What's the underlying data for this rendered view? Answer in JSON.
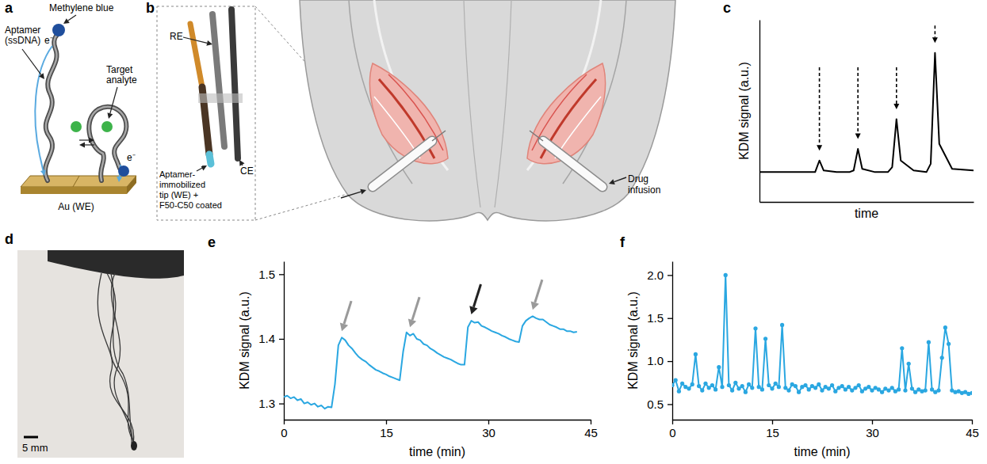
{
  "panel_letters": [
    "a",
    "b",
    "c",
    "d",
    "e",
    "f"
  ],
  "diagrams": {
    "a": {
      "methylene_blue": "Methylene blue",
      "aptamer": [
        "Aptamer",
        "(ssDNA)"
      ],
      "target_analyte": [
        "Target",
        "analyte"
      ],
      "electrode": "Au (WE)",
      "electron": "e⁻"
    },
    "b": {
      "reference_electrode": "RE",
      "counter_electrode": "CE",
      "working_electrode": [
        "Aptamer-",
        "immobilized",
        "tip (WE) +",
        "F50-C50 coated"
      ],
      "drug_infusion": [
        "Drug",
        "infusion"
      ]
    },
    "d": {
      "scale_bar": "5 mm"
    }
  },
  "chart_data": [
    {
      "type": "line",
      "x_label": "time",
      "y_label": "KDM signal (a.u.)",
      "tick_labels": false,
      "xlim": [
        0,
        10
      ],
      "ylim": [
        0,
        11
      ],
      "x": [
        0,
        1,
        2,
        2.6,
        2.8,
        3.0,
        3.6,
        4.2,
        4.4,
        4.6,
        4.8,
        5.4,
        6.0,
        6.2,
        6.4,
        6.6,
        7.2,
        7.8,
        8.0,
        8.2,
        8.4,
        9.0,
        10
      ],
      "series": [
        {
          "color": "#000000",
          "values": [
            1.8,
            1.8,
            1.8,
            1.8,
            2.5,
            1.9,
            1.8,
            1.8,
            1.9,
            3.2,
            2.0,
            1.8,
            1.8,
            2.1,
            5.0,
            2.5,
            1.9,
            1.8,
            2.3,
            9.0,
            3.5,
            2.0,
            1.9
          ]
        }
      ],
      "arrows": [
        {
          "x": 2.8,
          "y": 3.1,
          "line_style": "dashed"
        },
        {
          "x": 4.6,
          "y": 3.8,
          "line_style": "dashed"
        },
        {
          "x": 6.4,
          "y": 5.6,
          "line_style": "dashed"
        },
        {
          "x": 8.2,
          "y": 9.6,
          "line_style": "dashed"
        }
      ]
    },
    {
      "type": "line",
      "x_label": "time (min)",
      "y_label": "KDM signal (a.u.)",
      "xlim": [
        0,
        45
      ],
      "ylim": [
        1.275,
        1.52
      ],
      "xticks": [
        0,
        15,
        30,
        45
      ],
      "yticks": [
        1.3,
        1.4,
        1.5
      ],
      "x": [
        0,
        0.5,
        1,
        1.5,
        2,
        2.5,
        3,
        3.5,
        4,
        4.5,
        5,
        5.5,
        6,
        6.5,
        7,
        7.5,
        8,
        8.5,
        9,
        9.5,
        10,
        10.5,
        11,
        11.5,
        12,
        12.5,
        13,
        13.5,
        14,
        14.5,
        15,
        15.5,
        16,
        16.5,
        17,
        17.5,
        18,
        18.5,
        19,
        19.5,
        20,
        20.5,
        21,
        21.5,
        22,
        22.5,
        23,
        23.5,
        24,
        24.5,
        25,
        25.5,
        26,
        26.5,
        27,
        27.5,
        28,
        28.5,
        29,
        29.5,
        30,
        30.5,
        31,
        31.5,
        32,
        32.5,
        33,
        33.5,
        34,
        34.5,
        35,
        35.5,
        36,
        36.5,
        37,
        37.5,
        38,
        38.5,
        39,
        39.5,
        40,
        40.5,
        41,
        41.5,
        42,
        42.5,
        43
      ],
      "series": [
        {
          "color": "#2aa7e1",
          "values": [
            1.31,
            1.312,
            1.308,
            1.31,
            1.305,
            1.307,
            1.3,
            1.302,
            1.298,
            1.3,
            1.295,
            1.297,
            1.292,
            1.295,
            1.294,
            1.33,
            1.39,
            1.402,
            1.398,
            1.39,
            1.385,
            1.378,
            1.372,
            1.368,
            1.365,
            1.36,
            1.356,
            1.352,
            1.35,
            1.347,
            1.345,
            1.342,
            1.34,
            1.338,
            1.336,
            1.38,
            1.41,
            1.405,
            1.408,
            1.4,
            1.398,
            1.392,
            1.39,
            1.385,
            1.382,
            1.378,
            1.375,
            1.372,
            1.37,
            1.368,
            1.365,
            1.362,
            1.36,
            1.36,
            1.418,
            1.428,
            1.425,
            1.426,
            1.42,
            1.418,
            1.415,
            1.412,
            1.41,
            1.408,
            1.405,
            1.403,
            1.4,
            1.398,
            1.396,
            1.395,
            1.42,
            1.428,
            1.432,
            1.435,
            1.432,
            1.43,
            1.43,
            1.426,
            1.422,
            1.42,
            1.418,
            1.415,
            1.415,
            1.412,
            1.412,
            1.41,
            1.411
          ]
        }
      ],
      "arrows": [
        {
          "x": 8.5,
          "y": 1.412,
          "color": "#9a9a9a"
        },
        {
          "x": 18.5,
          "y": 1.418,
          "color": "#9a9a9a"
        },
        {
          "x": 27.5,
          "y": 1.438,
          "color": "#222222"
        },
        {
          "x": 36.5,
          "y": 1.445,
          "color": "#9a9a9a"
        }
      ]
    },
    {
      "type": "line",
      "x_label": "time (min)",
      "y_label": "KDM signal (a.u.)",
      "xlim": [
        0,
        45
      ],
      "ylim": [
        0.32,
        2.16
      ],
      "xticks": [
        0,
        15,
        30,
        45
      ],
      "yticks": [
        0.5,
        {
          "value": 1,
          "label": "1.0"
        },
        1.5,
        {
          "value": 2,
          "label": "2.0"
        }
      ],
      "x": [
        0,
        0.5,
        1,
        1.5,
        2,
        2.5,
        3,
        3.5,
        4,
        4.5,
        5,
        5.5,
        6,
        6.5,
        7,
        7.5,
        8,
        8.5,
        9,
        9.5,
        10,
        10.5,
        11,
        11.5,
        12,
        12.5,
        13,
        13.5,
        14,
        14.5,
        15,
        15.5,
        16,
        16.5,
        17,
        17.5,
        18,
        18.5,
        19,
        19.5,
        20,
        20.5,
        21,
        21.5,
        22,
        22.5,
        23,
        23.5,
        24,
        24.5,
        25,
        25.5,
        26,
        26.5,
        27,
        27.5,
        28,
        28.5,
        29,
        29.5,
        30,
        30.5,
        31,
        31.5,
        32,
        32.5,
        33,
        33.5,
        34,
        34.5,
        35,
        35.5,
        36,
        36.5,
        37,
        37.5,
        38,
        38.5,
        39,
        39.5,
        40,
        40.5,
        41,
        41.5,
        42,
        42.5,
        43,
        43.5,
        44,
        44.5,
        45
      ],
      "series": [
        {
          "color": "#2aa7e1",
          "marker": "circle",
          "values": [
            0.72,
            0.78,
            0.65,
            0.74,
            0.7,
            0.68,
            0.73,
            1.08,
            0.71,
            0.66,
            0.74,
            0.69,
            0.72,
            0.67,
            0.93,
            0.7,
            2.0,
            0.72,
            0.66,
            0.75,
            0.68,
            0.71,
            0.64,
            0.73,
            0.69,
            1.38,
            0.7,
            0.67,
            1.26,
            0.72,
            0.68,
            0.74,
            0.7,
            1.42,
            0.69,
            0.66,
            0.73,
            0.71,
            0.64,
            0.7,
            0.72,
            0.67,
            0.71,
            0.69,
            0.73,
            0.66,
            0.7,
            0.68,
            0.72,
            0.65,
            0.69,
            0.71,
            0.67,
            0.7,
            0.66,
            0.69,
            0.72,
            0.65,
            0.68,
            0.7,
            0.66,
            0.69,
            0.67,
            0.64,
            0.68,
            0.66,
            0.69,
            0.65,
            0.67,
            1.15,
            0.66,
            0.97,
            0.68,
            0.64,
            0.67,
            0.65,
            0.66,
            1.22,
            0.67,
            0.64,
            0.66,
            1.04,
            1.39,
            1.2,
            0.66,
            0.64,
            0.65,
            0.63,
            0.64,
            0.62,
            0.63
          ]
        }
      ]
    }
  ]
}
